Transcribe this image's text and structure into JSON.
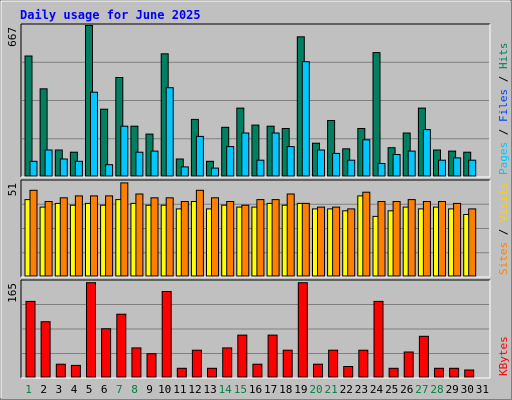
{
  "chart_data": [
    {
      "type": "bar",
      "title": "Daily usage for June 2025",
      "panel": "top",
      "y_tick_label": "667",
      "ylim": [
        0,
        667
      ],
      "categories": [
        "1",
        "2",
        "3",
        "4",
        "5",
        "6",
        "7",
        "8",
        "9",
        "10",
        "11",
        "12",
        "13",
        "14",
        "15",
        "16",
        "17",
        "18",
        "19",
        "20",
        "21",
        "22",
        "23",
        "24",
        "25",
        "26",
        "27",
        "28",
        "29",
        "30",
        "31"
      ],
      "x_label_colors": [
        "#008040",
        "#000000",
        "#000000",
        "#000000",
        "#000000",
        "#000000",
        "#008040",
        "#008040",
        "#000000",
        "#000000",
        "#000000",
        "#000000",
        "#000000",
        "#008040",
        "#008040",
        "#000000",
        "#000000",
        "#000000",
        "#000000",
        "#008040",
        "#008040",
        "#000000",
        "#000000",
        "#000000",
        "#000000",
        "#000000",
        "#008040",
        "#008040",
        "#000000",
        "#000000",
        "#000000"
      ],
      "axis_labels": [
        {
          "text": "Pages",
          "color": "#00c8ff"
        },
        {
          "text": "Files",
          "color": "#0040ff"
        },
        {
          "text": "Hits",
          "color": "#008060"
        }
      ],
      "series": [
        {
          "name": "Hits",
          "color": "#008060",
          "values": [
            530,
            385,
            115,
            105,
            665,
            295,
            435,
            220,
            185,
            540,
            75,
            250,
            65,
            215,
            300,
            225,
            220,
            210,
            615,
            145,
            245,
            120,
            210,
            545,
            125,
            190,
            300,
            115,
            110,
            105,
            0
          ]
        },
        {
          "name": "Files",
          "color": "#00c8ff",
          "values": [
            65,
            115,
            75,
            65,
            370,
            50,
            220,
            105,
            110,
            390,
            40,
            175,
            35,
            130,
            190,
            70,
            190,
            130,
            505,
            115,
            100,
            70,
            160,
            55,
            95,
            110,
            205,
            70,
            80,
            70,
            0
          ]
        },
        {
          "name": "Pages",
          "color": "#00c8ff",
          "values": [
            0,
            0,
            0,
            0,
            0,
            0,
            0,
            0,
            0,
            0,
            0,
            0,
            0,
            0,
            0,
            0,
            0,
            0,
            0,
            0,
            0,
            0,
            0,
            0,
            0,
            0,
            0,
            0,
            0,
            0,
            0
          ]
        }
      ]
    },
    {
      "type": "bar",
      "panel": "middle",
      "y_tick_label": "51",
      "ylim": [
        0,
        51
      ],
      "axis_labels": [
        {
          "text": "Sites",
          "color": "#ff8000"
        },
        {
          "text": "Visits",
          "color": "#ffd000"
        }
      ],
      "series": [
        {
          "name": "Visits",
          "color": "#ffff00",
          "values": [
            41,
            37,
            39,
            38,
            39,
            38,
            41,
            39,
            38,
            38,
            36,
            40,
            36,
            38,
            37,
            37,
            39,
            38,
            39,
            36,
            36,
            35,
            43,
            32,
            35,
            37,
            36,
            37,
            36,
            33,
            0
          ]
        },
        {
          "name": "Sites",
          "color": "#ff8000",
          "values": [
            46,
            40,
            42,
            43,
            43,
            43,
            50,
            44,
            42,
            42,
            40,
            46,
            42,
            40,
            38,
            41,
            41,
            44,
            39,
            37,
            37,
            36,
            45,
            40,
            40,
            41,
            40,
            40,
            39,
            36,
            0
          ]
        }
      ]
    },
    {
      "type": "bar",
      "panel": "bottom",
      "y_tick_label": "165",
      "ylim": [
        0,
        165
      ],
      "axis_labels": [
        {
          "text": "KBytes",
          "color": "#ff0000"
        }
      ],
      "series": [
        {
          "name": "KBytes",
          "color": "#ff0000",
          "values": [
            130,
            95,
            22,
            20,
            162,
            83,
            108,
            50,
            40,
            147,
            15,
            46,
            15,
            50,
            72,
            22,
            72,
            46,
            162,
            22,
            46,
            18,
            46,
            130,
            15,
            43,
            70,
            15,
            15,
            12,
            0
          ]
        }
      ]
    }
  ]
}
